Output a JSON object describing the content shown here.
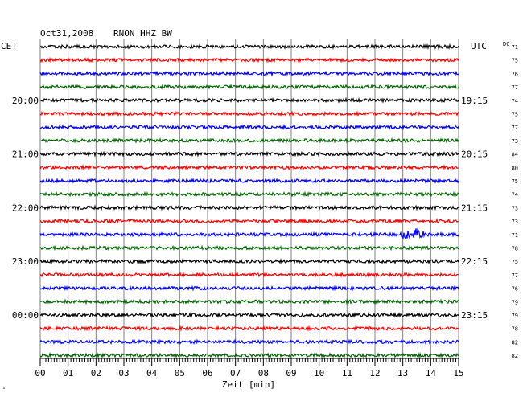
{
  "header": {
    "date": "Oct31,2008",
    "station": "RNON HHZ BW",
    "left_timezone": "CET",
    "right_timezone": "UTC",
    "dc_label": "DC"
  },
  "chart_data": {
    "type": "line",
    "title": "Oct31,2008   RNON HHZ BW",
    "xlabel": "Zeit [min]",
    "xlim": [
      0,
      15
    ],
    "x_ticks": [
      "00",
      "01",
      "02",
      "03",
      "04",
      "05",
      "06",
      "07",
      "08",
      "09",
      "10",
      "11",
      "12",
      "13",
      "14",
      "15"
    ],
    "grid": true,
    "trace_colors": [
      "#000000",
      "#ff0000",
      "#0000ff",
      "#006400"
    ],
    "left_hour_labels": [
      {
        "row": 4,
        "label": "20:00"
      },
      {
        "row": 8,
        "label": "21:00"
      },
      {
        "row": 12,
        "label": "22:00"
      },
      {
        "row": 16,
        "label": "23:00"
      },
      {
        "row": 20,
        "label": "00:00"
      }
    ],
    "right_hour_labels": [
      {
        "row": 4,
        "label": "19:15"
      },
      {
        "row": 8,
        "label": "20:15"
      },
      {
        "row": 12,
        "label": "21:15"
      },
      {
        "row": 16,
        "label": "22:15"
      },
      {
        "row": 20,
        "label": "23:15"
      }
    ],
    "dc_offsets": [
      71,
      75,
      76,
      77,
      74,
      75,
      77,
      73,
      84,
      80,
      75,
      74,
      73,
      73,
      71,
      78,
      75,
      77,
      76,
      79,
      79,
      78,
      82,
      82
    ],
    "events": [
      {
        "row": 14,
        "x_min": 13.0,
        "duration_min": 0.8,
        "amplitude": "large"
      }
    ]
  }
}
